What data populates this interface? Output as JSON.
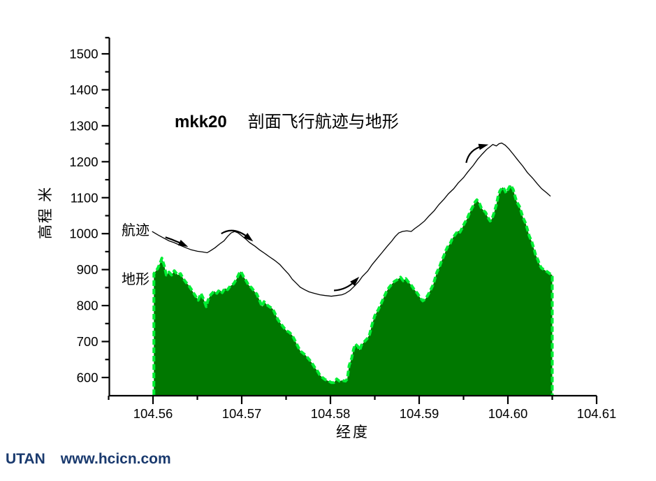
{
  "page": {
    "title_code": "mkk20",
    "title_text": "剖面飞行航迹与地形",
    "footer_brand": "UTAN",
    "footer_url": "www.hcicn.com"
  },
  "colors": {
    "terrain_fill": "#007800",
    "terrain_edge": "#00EE33",
    "trajectory": "#000000",
    "axis": "#000000",
    "footer_text": "#1a3a6e"
  },
  "chart_data": {
    "type": "area",
    "title": "mkk20  剖面飞行航迹与地形",
    "xlabel": "经度",
    "ylabel": "高程 米",
    "xlim": [
      104.555,
      104.61
    ],
    "ylim": [
      550,
      1545
    ],
    "grid": false,
    "legend_position": "inline-left",
    "x_ticks": [
      104.56,
      104.57,
      104.58,
      104.59,
      104.6,
      104.61
    ],
    "x_tick_labels": [
      "104.56",
      "104.57",
      "104.58",
      "104.59",
      "104.60",
      "104.61"
    ],
    "x_minor_ticks": [
      104.555,
      104.565,
      104.575,
      104.585,
      104.595,
      104.605
    ],
    "y_ticks": [
      600,
      700,
      800,
      900,
      1000,
      1100,
      1200,
      1300,
      1400,
      1500
    ],
    "y_minor_ticks": [
      650,
      750,
      850,
      950,
      1050,
      1150,
      1250,
      1350,
      1450,
      1545
    ],
    "series": [
      {
        "name": "航迹",
        "type": "line",
        "color": "#000000",
        "points": [
          [
            104.5599,
            1006
          ],
          [
            104.5606,
            996
          ],
          [
            104.5612,
            988
          ],
          [
            104.5618,
            980
          ],
          [
            104.5624,
            975
          ],
          [
            104.5631,
            967
          ],
          [
            104.5637,
            961
          ],
          [
            104.5643,
            955
          ],
          [
            104.565,
            951
          ],
          [
            104.5656,
            949
          ],
          [
            104.5661,
            947
          ],
          [
            104.5665,
            953
          ],
          [
            104.567,
            961
          ],
          [
            104.5675,
            971
          ],
          [
            104.568,
            980
          ],
          [
            104.5684,
            992
          ],
          [
            104.5688,
            1002
          ],
          [
            104.5692,
            1006
          ],
          [
            104.5696,
            1002
          ],
          [
            104.57,
            994
          ],
          [
            104.5705,
            984
          ],
          [
            104.5709,
            975
          ],
          [
            104.5715,
            965
          ],
          [
            104.572,
            955
          ],
          [
            104.5726,
            945
          ],
          [
            104.5731,
            936
          ],
          [
            104.5737,
            926
          ],
          [
            104.5743,
            914
          ],
          [
            104.5748,
            900
          ],
          [
            104.5753,
            887
          ],
          [
            104.5757,
            873
          ],
          [
            104.5762,
            861
          ],
          [
            104.5766,
            851
          ],
          [
            104.5771,
            844
          ],
          [
            104.5776,
            838
          ],
          [
            104.5782,
            834
          ],
          [
            104.5788,
            830
          ],
          [
            104.5794,
            828
          ],
          [
            104.5801,
            826
          ],
          [
            104.5807,
            828
          ],
          [
            104.5813,
            830
          ],
          [
            104.5817,
            834
          ],
          [
            104.5822,
            842
          ],
          [
            104.5827,
            854
          ],
          [
            104.5832,
            867
          ],
          [
            104.5836,
            881
          ],
          [
            104.5842,
            896
          ],
          [
            104.5847,
            914
          ],
          [
            104.5853,
            932
          ],
          [
            104.5858,
            947
          ],
          [
            104.5864,
            965
          ],
          [
            104.5869,
            979
          ],
          [
            104.5873,
            992
          ],
          [
            104.5877,
            1002
          ],
          [
            104.5881,
            1006
          ],
          [
            104.5886,
            1008
          ],
          [
            104.5891,
            1006
          ],
          [
            104.5895,
            1014
          ],
          [
            104.59,
            1023
          ],
          [
            104.5906,
            1035
          ],
          [
            104.5911,
            1049
          ],
          [
            104.5917,
            1064
          ],
          [
            104.5922,
            1080
          ],
          [
            104.5928,
            1096
          ],
          [
            104.5933,
            1111
          ],
          [
            104.5939,
            1125
          ],
          [
            104.5944,
            1141
          ],
          [
            104.595,
            1156
          ],
          [
            104.5955,
            1172
          ],
          [
            104.5961,
            1190
          ],
          [
            104.5966,
            1207
          ],
          [
            104.5971,
            1221
          ],
          [
            104.5976,
            1234
          ],
          [
            104.598,
            1242
          ],
          [
            104.5983,
            1248
          ],
          [
            104.5987,
            1244
          ],
          [
            104.599,
            1250
          ],
          [
            104.5993,
            1252
          ],
          [
            104.5997,
            1246
          ],
          [
            104.6001,
            1236
          ],
          [
            104.6006,
            1221
          ],
          [
            104.6011,
            1205
          ],
          [
            104.6017,
            1187
          ],
          [
            104.6022,
            1170
          ],
          [
            104.6028,
            1154
          ],
          [
            104.6033,
            1139
          ],
          [
            104.6038,
            1125
          ],
          [
            104.6044,
            1113
          ],
          [
            104.6048,
            1104
          ]
        ]
      },
      {
        "name": "地形",
        "type": "area",
        "fill_color": "#007800",
        "edge_color": "#00EE33",
        "baseline": 550,
        "points": [
          [
            104.5601,
            889
          ],
          [
            104.5605,
            902
          ],
          [
            104.5608,
            918
          ],
          [
            104.561,
            932
          ],
          [
            104.5613,
            908
          ],
          [
            104.5615,
            885
          ],
          [
            104.5618,
            893
          ],
          [
            104.5621,
            885
          ],
          [
            104.5624,
            897
          ],
          [
            104.5628,
            885
          ],
          [
            104.5631,
            889
          ],
          [
            104.5634,
            875
          ],
          [
            104.5637,
            865
          ],
          [
            104.564,
            857
          ],
          [
            104.5644,
            842
          ],
          [
            104.5648,
            826
          ],
          [
            104.5651,
            815
          ],
          [
            104.5654,
            834
          ],
          [
            104.5657,
            818
          ],
          [
            104.566,
            797
          ],
          [
            104.5662,
            815
          ],
          [
            104.5665,
            830
          ],
          [
            104.5669,
            840
          ],
          [
            104.5672,
            834
          ],
          [
            104.5675,
            844
          ],
          [
            104.5678,
            836
          ],
          [
            104.5681,
            848
          ],
          [
            104.5684,
            844
          ],
          [
            104.5687,
            854
          ],
          [
            104.5691,
            861
          ],
          [
            104.5694,
            873
          ],
          [
            104.5697,
            889
          ],
          [
            104.5699,
            895
          ],
          [
            104.5702,
            881
          ],
          [
            104.5705,
            869
          ],
          [
            104.5708,
            856
          ],
          [
            104.5711,
            850
          ],
          [
            104.5714,
            840
          ],
          [
            104.5717,
            832
          ],
          [
            104.572,
            815
          ],
          [
            104.5723,
            797
          ],
          [
            104.5725,
            811
          ],
          [
            104.5728,
            803
          ],
          [
            104.5731,
            797
          ],
          [
            104.5735,
            791
          ],
          [
            104.5738,
            775
          ],
          [
            104.5741,
            760
          ],
          [
            104.5744,
            750
          ],
          [
            104.5747,
            740
          ],
          [
            104.575,
            731
          ],
          [
            104.5754,
            725
          ],
          [
            104.5757,
            717
          ],
          [
            104.576,
            703
          ],
          [
            104.5763,
            688
          ],
          [
            104.5766,
            674
          ],
          [
            104.5769,
            668
          ],
          [
            104.5772,
            662
          ],
          [
            104.5776,
            650
          ],
          [
            104.5779,
            641
          ],
          [
            104.5782,
            629
          ],
          [
            104.5785,
            619
          ],
          [
            104.5788,
            607
          ],
          [
            104.5791,
            600
          ],
          [
            104.5794,
            594
          ],
          [
            104.5798,
            590
          ],
          [
            104.5801,
            586
          ],
          [
            104.5804,
            586
          ],
          [
            104.5807,
            596
          ],
          [
            104.581,
            590
          ],
          [
            104.5813,
            592
          ],
          [
            104.5817,
            590
          ],
          [
            104.5819,
            596
          ],
          [
            104.5821,
            633
          ],
          [
            104.5824,
            654
          ],
          [
            104.5826,
            678
          ],
          [
            104.5828,
            693
          ],
          [
            104.5831,
            686
          ],
          [
            104.5833,
            676
          ],
          [
            104.5835,
            690
          ],
          [
            104.5838,
            699
          ],
          [
            104.5841,
            707
          ],
          [
            104.5844,
            719
          ],
          [
            104.5847,
            748
          ],
          [
            104.585,
            772
          ],
          [
            104.5854,
            789
          ],
          [
            104.5857,
            805
          ],
          [
            104.586,
            822
          ],
          [
            104.5863,
            838
          ],
          [
            104.5866,
            850
          ],
          [
            104.5869,
            859
          ],
          [
            104.5872,
            867
          ],
          [
            104.5876,
            873
          ],
          [
            104.5879,
            879
          ],
          [
            104.5882,
            869
          ],
          [
            104.5885,
            875
          ],
          [
            104.5888,
            865
          ],
          [
            104.5891,
            857
          ],
          [
            104.5894,
            846
          ],
          [
            104.5898,
            834
          ],
          [
            104.5901,
            822
          ],
          [
            104.5904,
            813
          ],
          [
            104.5907,
            818
          ],
          [
            104.591,
            830
          ],
          [
            104.5913,
            844
          ],
          [
            104.5916,
            859
          ],
          [
            104.5918,
            877
          ],
          [
            104.592,
            893
          ],
          [
            104.5923,
            908
          ],
          [
            104.5925,
            922
          ],
          [
            104.5928,
            940
          ],
          [
            104.593,
            953
          ],
          [
            104.5932,
            963
          ],
          [
            104.5935,
            973
          ],
          [
            104.5937,
            984
          ],
          [
            104.5939,
            992
          ],
          [
            104.5942,
            1002
          ],
          [
            104.5944,
            1008
          ],
          [
            104.5946,
            1004
          ],
          [
            104.5949,
            1018
          ],
          [
            104.5951,
            1029
          ],
          [
            104.5954,
            1041
          ],
          [
            104.5956,
            1053
          ],
          [
            104.5958,
            1064
          ],
          [
            104.5961,
            1078
          ],
          [
            104.5963,
            1088
          ],
          [
            104.5965,
            1094
          ],
          [
            104.5968,
            1084
          ],
          [
            104.597,
            1072
          ],
          [
            104.5972,
            1066
          ],
          [
            104.5975,
            1059
          ],
          [
            104.5977,
            1047
          ],
          [
            104.598,
            1035
          ],
          [
            104.5982,
            1041
          ],
          [
            104.5984,
            1055
          ],
          [
            104.5987,
            1080
          ],
          [
            104.5989,
            1104
          ],
          [
            104.5991,
            1119
          ],
          [
            104.5994,
            1129
          ],
          [
            104.5996,
            1123
          ],
          [
            104.5998,
            1113
          ],
          [
            104.6001,
            1127
          ],
          [
            104.6003,
            1135
          ],
          [
            104.6006,
            1123
          ],
          [
            104.6008,
            1104
          ],
          [
            104.601,
            1088
          ],
          [
            104.6013,
            1076
          ],
          [
            104.6015,
            1061
          ],
          [
            104.6017,
            1045
          ],
          [
            104.602,
            1029
          ],
          [
            104.6022,
            1012
          ],
          [
            104.6024,
            994
          ],
          [
            104.6027,
            977
          ],
          [
            104.6029,
            961
          ],
          [
            104.6031,
            943
          ],
          [
            104.6034,
            926
          ],
          [
            104.6036,
            912
          ],
          [
            104.6038,
            904
          ],
          [
            104.6042,
            898
          ],
          [
            104.6045,
            893
          ],
          [
            104.6047,
            889
          ],
          [
            104.605,
            885
          ]
        ]
      }
    ],
    "arrows": [
      {
        "start": [
          104.5614,
          990
        ],
        "ctrl": [
          104.5624,
          982
        ],
        "end": [
          104.5634,
          970
        ]
      },
      {
        "start": [
          104.5677,
          1000
        ],
        "ctrl": [
          104.5691,
          1022
        ],
        "end": [
          104.5708,
          988
        ]
      },
      {
        "start": [
          104.5804,
          842
        ],
        "ctrl": [
          104.5818,
          844
        ],
        "end": [
          104.5828,
          869
        ]
      },
      {
        "start": [
          104.5953,
          1197
        ],
        "ctrl": [
          104.5956,
          1234
        ],
        "end": [
          104.5972,
          1244
        ]
      }
    ]
  }
}
